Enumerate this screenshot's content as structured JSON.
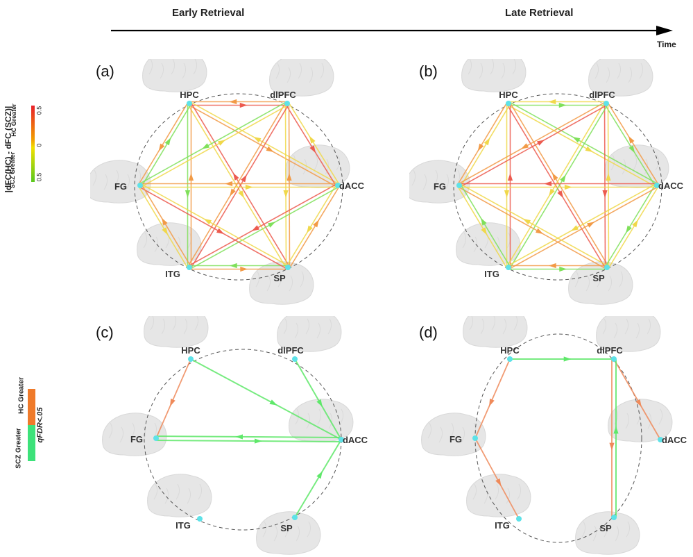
{
  "header": {
    "early_label": "Early Retrieval",
    "late_label": "Late Retrieval",
    "time_label": "Time"
  },
  "legend_top": {
    "title": "|dFC(HC) - dFC (SCZ)|",
    "hc_label": "HC Greater",
    "scz_label": "SCZ Greater",
    "tick_top": "0.5",
    "tick_mid": "0",
    "tick_bottom": "0.5",
    "colors": {
      "top": "#e8202a",
      "mid": "#f2c200",
      "bottom": "#59c81e"
    }
  },
  "legend_bottom": {
    "hc_label": "HC Greater",
    "scz_label": "SCZ Greater",
    "q_label": "qFDR<.05",
    "colors": {
      "hc": "#ef7a2a",
      "scz": "#3de27a"
    }
  },
  "nodes": [
    "HPC",
    "dlPFC",
    "dACC",
    "SP",
    "ITG",
    "FG"
  ],
  "panels": [
    {
      "tag": "(a)"
    },
    {
      "tag": "(b)"
    },
    {
      "tag": "(c)"
    },
    {
      "tag": "(d)"
    }
  ],
  "edge_colors": {
    "strong_hc": "#ec5b4f",
    "mid_hc": "#f29a46",
    "weak": "#f0d84a",
    "scz": "#7fe05a",
    "sig_hc": "#ef8a5a",
    "sig_scz": "#5fe86a"
  }
}
